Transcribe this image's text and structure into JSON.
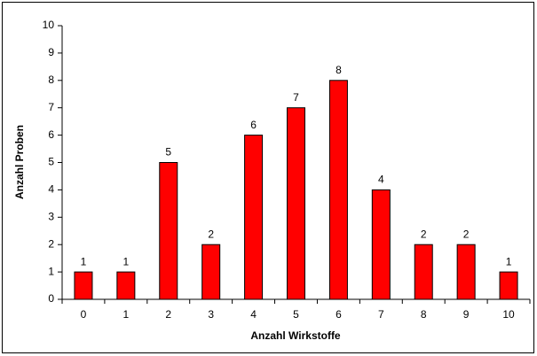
{
  "chart_data": {
    "type": "bar",
    "categories": [
      "0",
      "1",
      "2",
      "3",
      "4",
      "5",
      "6",
      "7",
      "8",
      "9",
      "10"
    ],
    "values": [
      1,
      1,
      5,
      2,
      6,
      7,
      8,
      4,
      2,
      2,
      1
    ],
    "color": "#ff0000",
    "xlabel": "Anzahl Wirkstoffe",
    "ylabel": "Anzahl Proben",
    "ylim": [
      0,
      10
    ],
    "yticks": [
      0,
      1,
      2,
      3,
      4,
      5,
      6,
      7,
      8,
      9,
      10
    ],
    "grid": false
  }
}
